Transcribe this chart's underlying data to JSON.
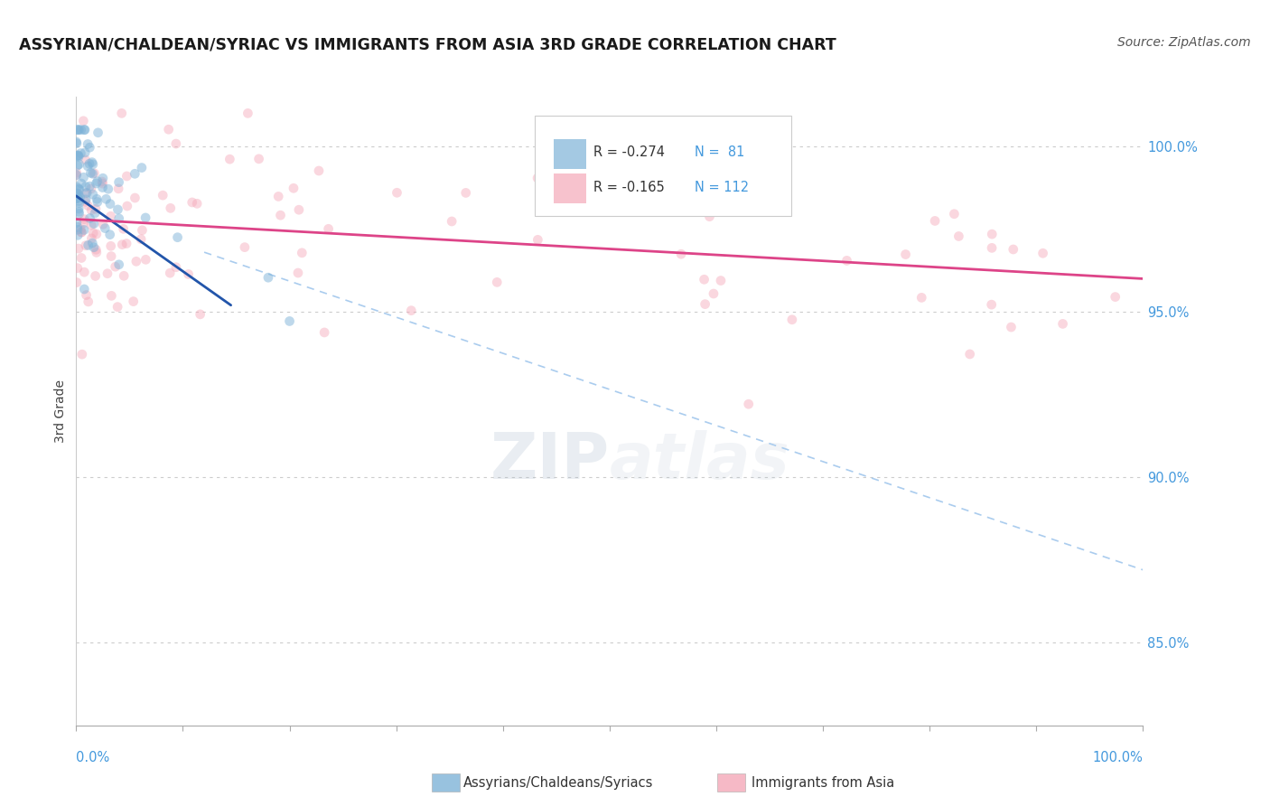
{
  "title": "ASSYRIAN/CHALDEAN/SYRIAC VS IMMIGRANTS FROM ASIA 3RD GRADE CORRELATION CHART",
  "source": "Source: ZipAtlas.com",
  "ylabel": "3rd Grade",
  "y_tick_labels": [
    "85.0%",
    "90.0%",
    "95.0%",
    "100.0%"
  ],
  "y_tick_values": [
    0.85,
    0.9,
    0.95,
    1.0
  ],
  "x_range": [
    0.0,
    1.0
  ],
  "y_range": [
    0.825,
    1.015
  ],
  "legend_r1": "R = -0.274",
  "legend_n1": "N =  81",
  "legend_r2": "R = -0.165",
  "legend_n2": "N = 112",
  "blue_color": "#7EB3D8",
  "pink_color": "#F4A8B8",
  "trend_blue_color": "#2255AA",
  "trend_pink_color": "#DD4488",
  "dashed_color": "#AACCEE",
  "grid_color": "#CCCCCC",
  "right_label_color": "#4499DD",
  "background_color": "#FFFFFF",
  "marker_size": 60,
  "alpha_blue": 0.5,
  "alpha_pink": 0.45
}
